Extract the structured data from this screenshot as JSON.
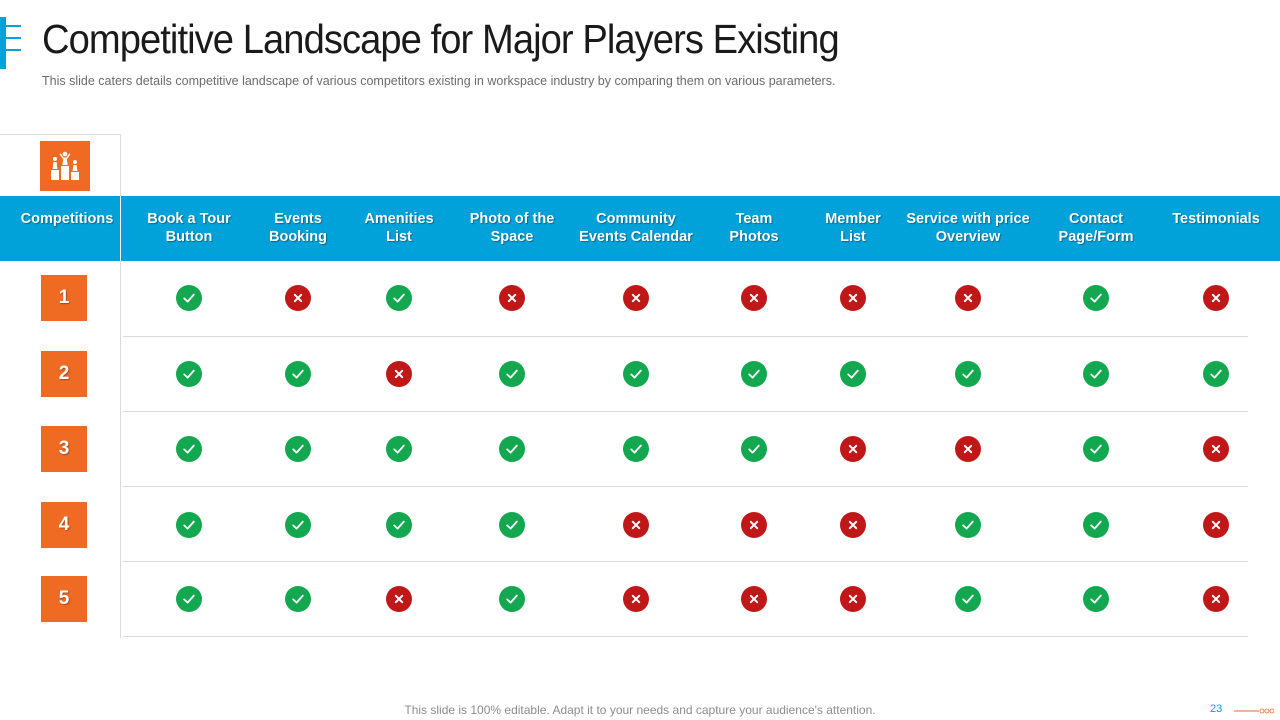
{
  "title": "Competitive Landscape for Major Players Existing",
  "subtitle": "This slide caters details competitive landscape of various  competitors existing in workspace industry by comparing them on various  parameters.",
  "header_icon": "people-podium-icon",
  "table": {
    "first_column_label": "Competitions",
    "columns": [
      {
        "line1": "Book a Tour",
        "line2": "Button"
      },
      {
        "line1": "Events",
        "line2": "Booking"
      },
      {
        "line1": "Amenities",
        "line2": "List"
      },
      {
        "line1": "Photo of the",
        "line2": "Space"
      },
      {
        "line1": "Community",
        "line2": "Events Calendar"
      },
      {
        "line1": "Team",
        "line2": "Photos"
      },
      {
        "line1": "Member",
        "line2": "List"
      },
      {
        "line1": "Service with price",
        "line2": "Overview"
      },
      {
        "line1": "Contact",
        "line2": "Page/Form"
      },
      {
        "line1": "Testimonials",
        "line2": ""
      }
    ],
    "rows": [
      {
        "label": "1",
        "values": [
          true,
          false,
          true,
          false,
          false,
          false,
          false,
          false,
          true,
          false
        ]
      },
      {
        "label": "2",
        "values": [
          true,
          true,
          false,
          true,
          true,
          true,
          true,
          true,
          true,
          true
        ]
      },
      {
        "label": "3",
        "values": [
          true,
          true,
          true,
          true,
          true,
          true,
          false,
          false,
          true,
          false
        ]
      },
      {
        "label": "4",
        "values": [
          true,
          true,
          true,
          true,
          false,
          false,
          false,
          true,
          true,
          false
        ]
      },
      {
        "label": "5",
        "values": [
          true,
          true,
          false,
          true,
          false,
          false,
          false,
          true,
          true,
          false
        ]
      }
    ]
  },
  "icons": {
    "yes": "check-circle-icon",
    "no": "cross-circle-icon"
  },
  "colors": {
    "accent_blue": "#00a2d9",
    "accent_orange": "#ef6a23",
    "yes_green": "#13a84f",
    "no_red": "#c01818"
  },
  "footer": {
    "text": "This slide is 100% editable. Adapt it to your needs and capture your audience's attention.",
    "page_number": "23"
  }
}
